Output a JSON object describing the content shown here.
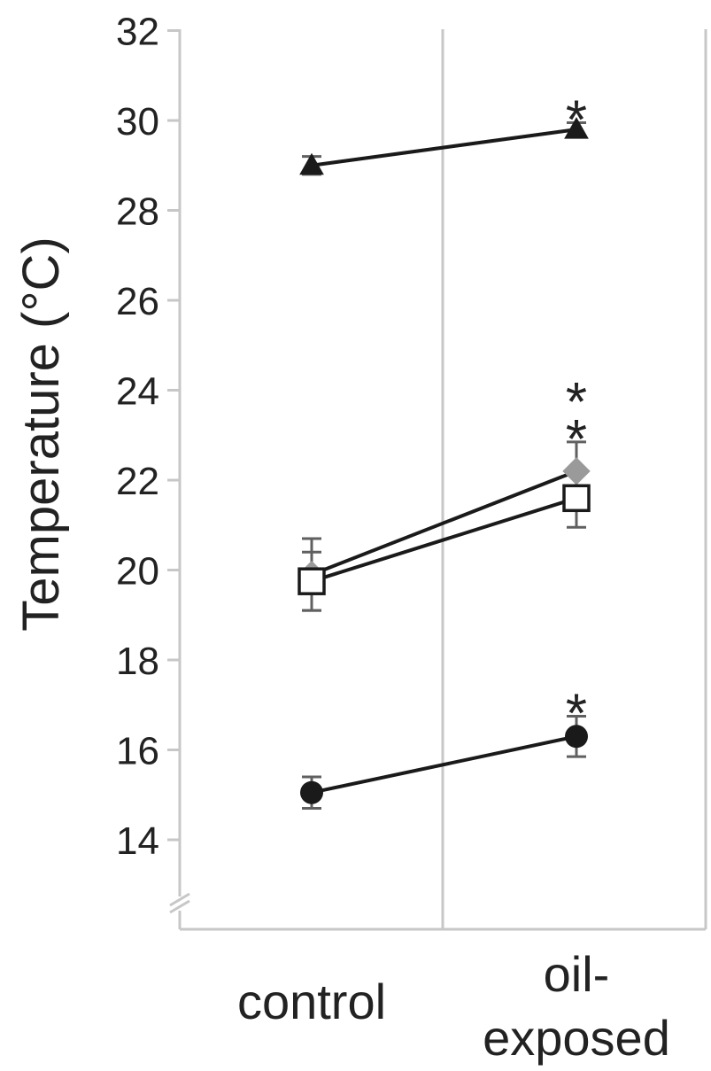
{
  "chart_data": {
    "type": "line",
    "ylabel": "Temperature (°C)",
    "xlabel": "",
    "ylim": [
      12,
      32
    ],
    "yticks": [
      14,
      16,
      18,
      20,
      22,
      24,
      26,
      28,
      30,
      32
    ],
    "y_axis_break": true,
    "grid": "vertical separator between categories",
    "categories": [
      {
        "lines": [
          "control"
        ]
      },
      {
        "lines": [
          "oil-",
          "exposed"
        ]
      }
    ],
    "series": [
      {
        "marker": "triangle",
        "fill": "#1a1a1a",
        "values": [
          29.0,
          29.8
        ],
        "err": [
          0.2,
          0.15
        ],
        "significance": [
          "",
          "*"
        ]
      },
      {
        "marker": "diamond",
        "fill": "#9a9a9a",
        "values": [
          19.9,
          22.2
        ],
        "err": [
          0.8,
          0.65
        ],
        "significance": [
          "",
          "*"
        ]
      },
      {
        "marker": "square",
        "fill": "#ffffff",
        "values": [
          19.75,
          21.6
        ],
        "err": [
          0.65,
          0.65
        ],
        "significance": [
          "",
          "*"
        ]
      },
      {
        "marker": "circle",
        "fill": "#1a1a1a",
        "values": [
          15.05,
          16.3
        ],
        "err": [
          0.35,
          0.45
        ],
        "significance": [
          "",
          "*"
        ]
      }
    ]
  }
}
